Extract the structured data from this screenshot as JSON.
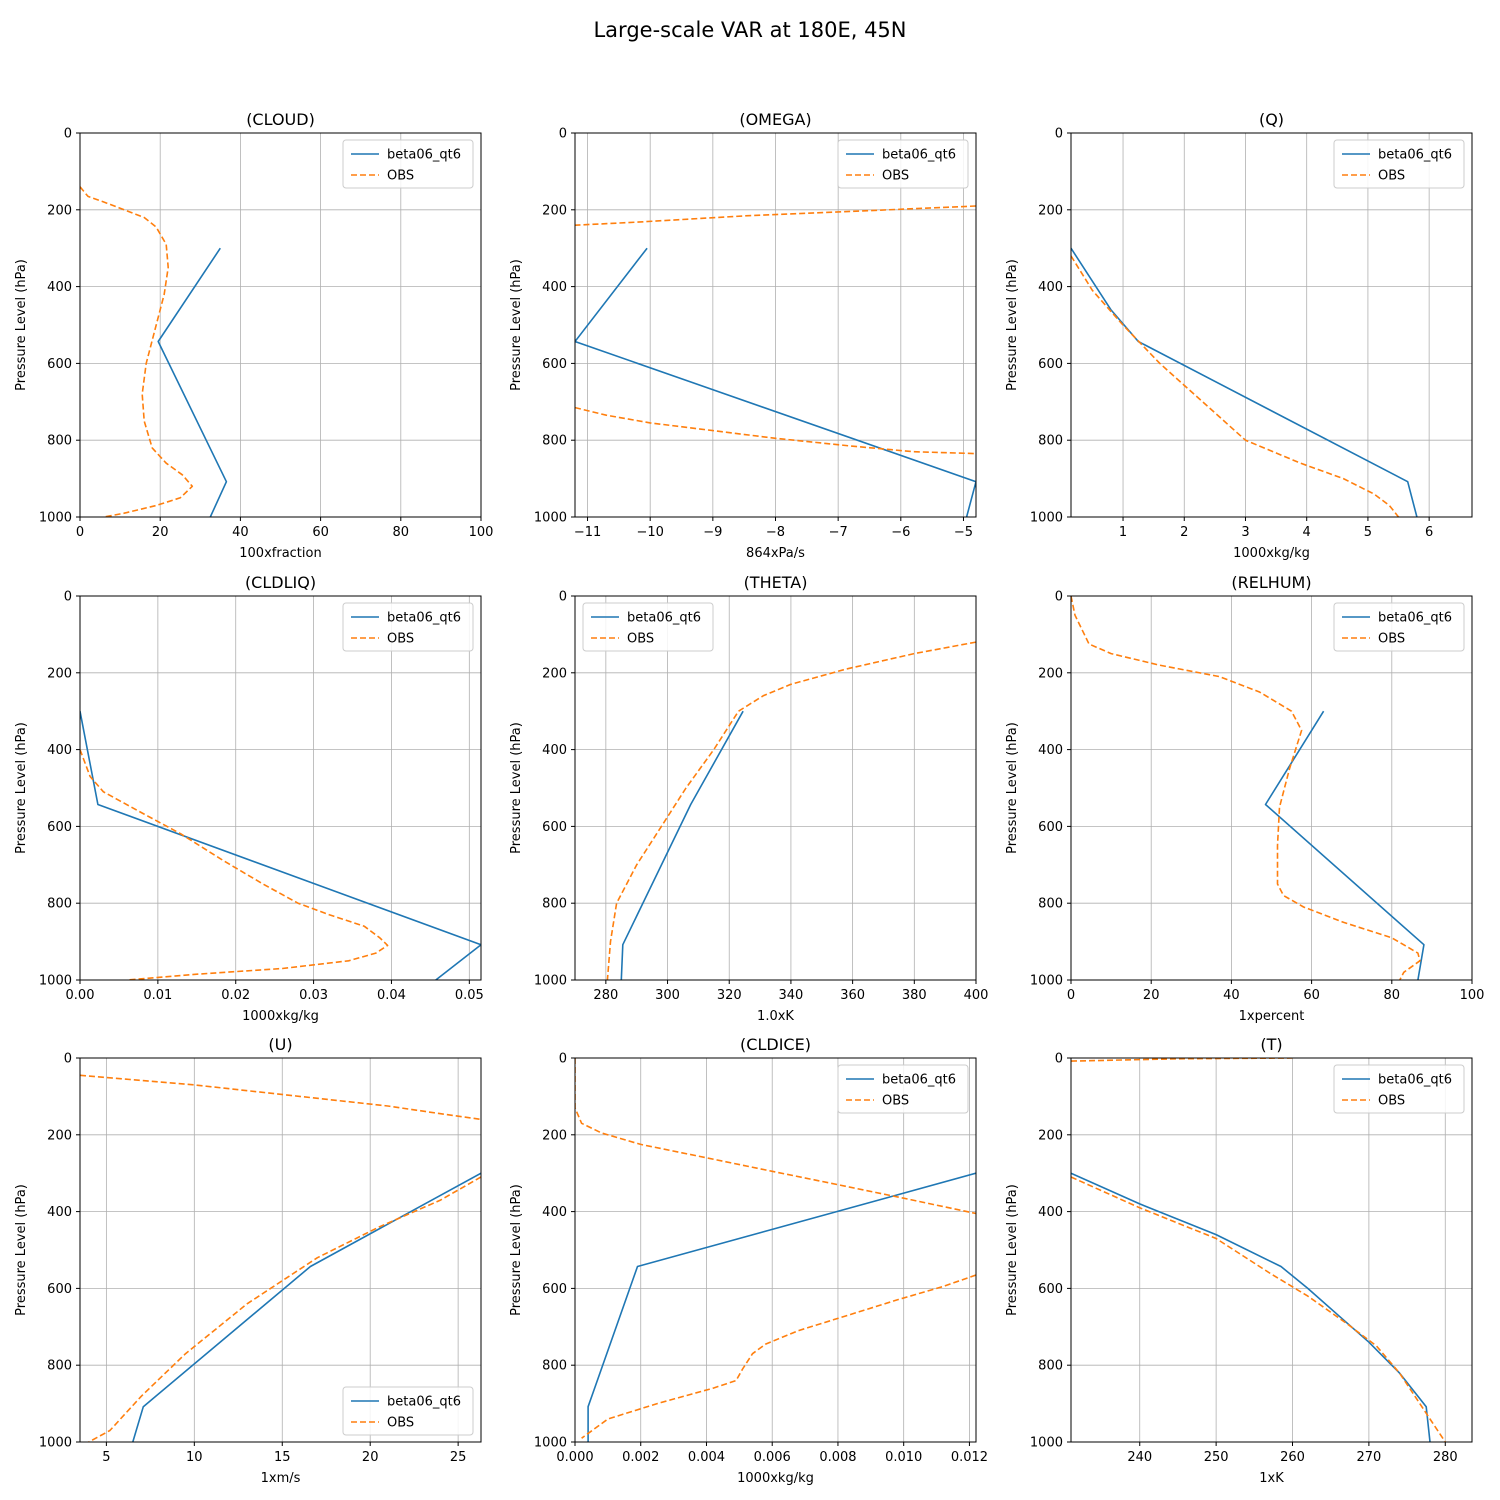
{
  "figure": {
    "suptitle": "Large-scale VAR at 180E, 45N"
  },
  "colors": {
    "model": "#1f77b4",
    "obs": "#ff7f0e",
    "grid": "#b0b0b0",
    "axis": "#000000"
  },
  "legend_labels": [
    "beta06_qt6",
    "OBS"
  ],
  "chart_data": [
    {
      "type": "line",
      "title": "(CLOUD)",
      "xlabel": "100xfraction",
      "ylabel": "Pressure Level (hPa)",
      "xlim": [
        0,
        100
      ],
      "ylim": [
        1000,
        0
      ],
      "y_inverted": true,
      "xticks": [
        0,
        20,
        40,
        60,
        80,
        100
      ],
      "yticks": [
        0,
        200,
        400,
        600,
        800,
        1000
      ],
      "grid": true,
      "legend": "upper right",
      "series": [
        {
          "name": "beta06_qt6",
          "style": "solid",
          "x": [
            35,
            19.5,
            36.5,
            32.5
          ],
          "y": [
            300,
            543,
            908,
            1000
          ]
        },
        {
          "name": "OBS",
          "style": "dashed",
          "x": [
            0,
            2,
            6,
            16,
            19,
            21.5,
            22,
            21,
            19,
            16.5,
            15.5,
            16,
            18,
            21.5,
            25.5,
            28,
            25,
            19,
            11,
            6
          ],
          "y": [
            140,
            165,
            180,
            220,
            245,
            290,
            350,
            420,
            500,
            600,
            680,
            750,
            820,
            860,
            890,
            920,
            950,
            970,
            990,
            1000
          ]
        }
      ]
    },
    {
      "type": "line",
      "title": "(OMEGA)",
      "xlabel": "864xPa/s",
      "ylabel": "Pressure Level (hPa)",
      "xlim": [
        -11.2,
        -4.8
      ],
      "ylim": [
        1000,
        0
      ],
      "y_inverted": true,
      "xticks": [
        -11,
        -10,
        -9,
        -8,
        -7,
        -6,
        -5
      ],
      "xtick_labels": [
        "−11",
        "−10",
        "−9",
        "−8",
        "−7",
        "−6",
        "−5"
      ],
      "yticks": [
        0,
        200,
        400,
        600,
        800,
        1000
      ],
      "grid": true,
      "legend": "upper right",
      "series": [
        {
          "name": "beta06_qt6",
          "style": "solid",
          "x": [
            -10.05,
            -11.2,
            -4.8,
            -4.95
          ],
          "y": [
            300,
            543,
            908,
            1000
          ]
        },
        {
          "name": "OBS",
          "style": "dashed",
          "x": [
            -4.8,
            -6.5,
            -8.5,
            -10.2,
            -11.2
          ],
          "y": [
            190,
            202,
            216,
            232,
            240
          ]
        },
        {
          "name": "OBS",
          "style": "dashed",
          "x": [
            -11.2,
            -10.7,
            -10.0,
            -9.0,
            -8.0,
            -6.8,
            -5.8,
            -4.8
          ],
          "y": [
            715,
            735,
            755,
            775,
            795,
            815,
            830,
            835
          ]
        }
      ]
    },
    {
      "type": "line",
      "title": "(Q)",
      "xlabel": "1000xkg/kg",
      "ylabel": "Pressure Level (hPa)",
      "xlim": [
        0.15,
        6.7
      ],
      "ylim": [
        1000,
        0
      ],
      "y_inverted": true,
      "xticks": [
        1,
        2,
        3,
        4,
        5,
        6
      ],
      "yticks": [
        0,
        200,
        400,
        600,
        800,
        1000
      ],
      "grid": true,
      "legend": "upper right",
      "series": [
        {
          "name": "beta06_qt6",
          "style": "solid",
          "x": [
            0.15,
            0.8,
            1.25,
            5.65,
            5.8
          ],
          "y": [
            300,
            460,
            543,
            908,
            1000
          ]
        },
        {
          "name": "OBS",
          "style": "dashed",
          "x": [
            0.15,
            0.5,
            1.0,
            1.6,
            2.3,
            3.0,
            3.9,
            4.6,
            5.1,
            5.35,
            5.5
          ],
          "y": [
            320,
            410,
            500,
            600,
            700,
            800,
            860,
            900,
            940,
            970,
            1000
          ]
        }
      ]
    },
    {
      "type": "line",
      "title": "(CLDLIQ)",
      "xlabel": "1000xkg/kg",
      "ylabel": "Pressure Level (hPa)",
      "xlim": [
        0.0,
        0.0515
      ],
      "ylim": [
        1000,
        0
      ],
      "y_inverted": true,
      "xticks": [
        0.0,
        0.01,
        0.02,
        0.03,
        0.04,
        0.05
      ],
      "xtick_labels": [
        "0.00",
        "0.01",
        "0.02",
        "0.03",
        "0.04",
        "0.05"
      ],
      "yticks": [
        0,
        200,
        400,
        600,
        800,
        1000
      ],
      "grid": true,
      "legend": "upper right",
      "series": [
        {
          "name": "beta06_qt6",
          "style": "solid",
          "x": [
            0.0,
            0.0023,
            0.0515,
            0.0457
          ],
          "y": [
            300,
            543,
            908,
            1000
          ]
        },
        {
          "name": "OBS",
          "style": "dashed",
          "x": [
            0.0,
            0.0013,
            0.003,
            0.0075,
            0.013,
            0.0185,
            0.0235,
            0.028,
            0.032,
            0.0365,
            0.0385,
            0.0395,
            0.038,
            0.0345,
            0.026,
            0.015,
            0.006
          ],
          "y": [
            400,
            470,
            510,
            560,
            620,
            690,
            750,
            800,
            830,
            860,
            890,
            910,
            930,
            950,
            970,
            985,
            1000
          ]
        }
      ]
    },
    {
      "type": "line",
      "title": "(THETA)",
      "xlabel": "1.0xK",
      "ylabel": "Pressure Level (hPa)",
      "xlim": [
        270,
        400
      ],
      "ylim": [
        1000,
        0
      ],
      "y_inverted": true,
      "xticks": [
        280,
        300,
        320,
        340,
        360,
        380,
        400
      ],
      "yticks": [
        0,
        200,
        400,
        600,
        800,
        1000
      ],
      "grid": true,
      "legend": "upper left",
      "series": [
        {
          "name": "beta06_qt6",
          "style": "solid",
          "x": [
            324.5,
            307.5,
            285.5,
            285.0
          ],
          "y": [
            300,
            543,
            908,
            1000
          ]
        },
        {
          "name": "OBS",
          "style": "dashed",
          "x": [
            400,
            380,
            358,
            340,
            331,
            323,
            315,
            306,
            298,
            290,
            283.5,
            281.5,
            280.5
          ],
          "y": [
            120,
            150,
            190,
            230,
            260,
            300,
            400,
            500,
            600,
            700,
            800,
            900,
            1000
          ]
        }
      ]
    },
    {
      "type": "line",
      "title": "(RELHUM)",
      "xlabel": "1xpercent",
      "ylabel": "Pressure Level (hPa)",
      "xlim": [
        0,
        100
      ],
      "ylim": [
        1000,
        0
      ],
      "y_inverted": true,
      "xticks": [
        0,
        20,
        40,
        60,
        80,
        100
      ],
      "yticks": [
        0,
        200,
        400,
        600,
        800,
        1000
      ],
      "grid": true,
      "legend": "upper right",
      "series": [
        {
          "name": "beta06_qt6",
          "style": "solid",
          "x": [
            63,
            48.5,
            88,
            86.5
          ],
          "y": [
            300,
            543,
            908,
            1000
          ]
        },
        {
          "name": "OBS",
          "style": "dashed",
          "x": [
            0,
            1,
            4.5,
            10,
            22,
            37,
            47,
            55,
            57.5,
            54.5,
            52,
            51.5,
            51.5,
            53,
            58,
            68,
            80,
            86.5,
            87,
            83,
            82
          ],
          "y": [
            0,
            50,
            125,
            150,
            180,
            210,
            250,
            300,
            350,
            450,
            550,
            650,
            750,
            780,
            810,
            850,
            890,
            930,
            950,
            980,
            1000
          ]
        }
      ]
    },
    {
      "type": "line",
      "title": "(U)",
      "xlabel": "1xm/s",
      "ylabel": "Pressure Level (hPa)",
      "xlim": [
        3.5,
        26.3
      ],
      "ylim": [
        1000,
        0
      ],
      "y_inverted": true,
      "xticks": [
        5,
        10,
        15,
        20,
        25
      ],
      "yticks": [
        0,
        200,
        400,
        600,
        800,
        1000
      ],
      "grid": true,
      "legend": "lower right",
      "series": [
        {
          "name": "beta06_qt6",
          "style": "solid",
          "x": [
            26.3,
            16.6,
            7.1,
            6.5
          ],
          "y": [
            300,
            543,
            908,
            1000
          ]
        },
        {
          "name": "OBS",
          "style": "dashed",
          "x": [
            3.5,
            10,
            16,
            21,
            24,
            26.3
          ],
          "y": [
            45,
            70,
            100,
            125,
            145,
            160
          ]
        },
        {
          "name": "OBS",
          "style": "dashed",
          "x": [
            26.3,
            24,
            20.5,
            17,
            13,
            9.5,
            7,
            5.2,
            4.0
          ],
          "y": [
            310,
            370,
            440,
            520,
            640,
            770,
            880,
            970,
            1000
          ]
        }
      ]
    },
    {
      "type": "line",
      "title": "(CLDICE)",
      "xlabel": "1000xkg/kg",
      "ylabel": "Pressure Level (hPa)",
      "xlim": [
        0.0,
        0.0122
      ],
      "ylim": [
        1000,
        0
      ],
      "y_inverted": true,
      "xticks": [
        0.0,
        0.002,
        0.004,
        0.006,
        0.008,
        0.01,
        0.012
      ],
      "xtick_labels": [
        "0.000",
        "0.002",
        "0.004",
        "0.006",
        "0.008",
        "0.010",
        "0.012"
      ],
      "yticks": [
        0,
        200,
        400,
        600,
        800,
        1000
      ],
      "grid": true,
      "legend": "upper right",
      "series": [
        {
          "name": "beta06_qt6",
          "style": "solid",
          "x": [
            0.0122,
            0.0019,
            0.0004,
            0.0004
          ],
          "y": [
            300,
            543,
            908,
            1000
          ]
        },
        {
          "name": "OBS",
          "style": "dashed",
          "x": [
            0.0,
            0.0,
            0.0002,
            0.0008,
            0.002,
            0.004,
            0.006,
            0.008,
            0.01,
            0.0122
          ],
          "y": [
            0,
            130,
            170,
            195,
            225,
            260,
            295,
            330,
            365,
            405
          ]
        },
        {
          "name": "OBS",
          "style": "dashed",
          "x": [
            0.0122,
            0.0112,
            0.0098,
            0.0083,
            0.0068,
            0.0058,
            0.0054,
            0.0051,
            0.0049,
            0.0042,
            0.0025,
            0.001,
            0.0002
          ],
          "y": [
            565,
            595,
            630,
            670,
            710,
            745,
            770,
            810,
            840,
            860,
            900,
            940,
            990
          ]
        }
      ]
    },
    {
      "type": "line",
      "title": "(T)",
      "xlabel": "1xK",
      "ylabel": "Pressure Level (hPa)",
      "xlim": [
        231,
        283.5
      ],
      "ylim": [
        1000,
        0
      ],
      "y_inverted": true,
      "xticks": [
        240,
        250,
        260,
        270,
        280
      ],
      "yticks": [
        0,
        200,
        400,
        600,
        800,
        1000
      ],
      "grid": true,
      "legend": "upper right",
      "series": [
        {
          "name": "beta06_qt6",
          "style": "solid",
          "x": [
            231,
            240,
            250,
            258.5,
            262,
            266,
            270,
            274,
            277.5,
            278
          ],
          "y": [
            300,
            380,
            460,
            543,
            600,
            670,
            740,
            820,
            908,
            1000
          ]
        },
        {
          "name": "OBS",
          "style": "dashed",
          "x": [
            231,
            245,
            260
          ],
          "y": [
            8,
            2,
            0
          ]
        },
        {
          "name": "OBS",
          "style": "dashed",
          "x": [
            231,
            240,
            250,
            257,
            262,
            267,
            271,
            274,
            276,
            278,
            280
          ],
          "y": [
            310,
            390,
            470,
            560,
            620,
            690,
            750,
            820,
            880,
            940,
            1000
          ]
        }
      ]
    }
  ]
}
